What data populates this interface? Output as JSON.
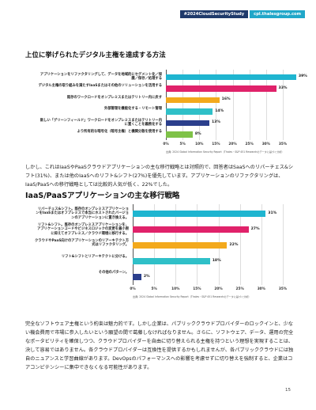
{
  "header": {
    "tag_study": "#2024CloudSecurityStudy",
    "tag_site": "cpl.thalesgroup.com"
  },
  "section1": {
    "title": "上位に挙げられたデジタル主権を達成する方法"
  },
  "chart_data": [
    {
      "type": "bar",
      "orientation": "horizontal",
      "categories": [
        "アプリケーションをリファクタリングして、データを地域的にセグメント化／保護／保存／処理する",
        "デジタル主権の取り組みを満たすIaaSまたはその他のソリューションを活用する",
        "既存のワークロードをオンプレミスまたはテリトリー内に戻す",
        "外部管理を機能化する・リモート管理",
        "新しい「グリーンフィールド」ワークロードをオンプレミスまたはテリトリー内に置くことを義務化する",
        "より所有的な暗号化（暗号主権）と機関分散を使用する"
      ],
      "values": [
        39,
        33,
        16,
        14,
        13,
        8
      ],
      "value_labels": [
        "39%",
        "33%",
        "16%",
        "14%",
        "13%",
        "8%"
      ],
      "colors": [
        "#1fb5d0",
        "#e0226a",
        "#f3a91c",
        "#2fc0c8",
        "#2b3f8c",
        "#7fc248"
      ],
      "xlim": [
        0,
        35
      ],
      "xticks": [
        "0%",
        "5%",
        "10%",
        "15%",
        "20%",
        "25%",
        "30%",
        "35%"
      ],
      "source": "出典: 2024 Global Information Security Report（Thales・S&P 451 Researchのデータに基づく分析）"
    },
    {
      "type": "bar",
      "orientation": "horizontal",
      "categories": [
        "リバーチェス&シフト。既存のオンプレミスアプリケーションをIaaSまたはオフプレミスで本当にホストされたバージョンのアプリケーションに置き換える。",
        "リフト&シフト。既存のオンプレミスアプリケーションを、アプリケーションコードやビジネスロジックの変更を最小限に抑えてオフプレミス／クラウド環境に移行する。",
        "クラウドやPaaS向けのアプリケーションのリアーキテクト方式はリファクタリング。",
        "リフト&シフトとリアーキテクトに分ける。",
        "その他のパターン。"
      ],
      "values": [
        31,
        27,
        22,
        18,
        2
      ],
      "value_labels": [
        "31%",
        "27%",
        "22%",
        "18%",
        "2%"
      ],
      "colors": [
        "#1fb5d0",
        "#e0226a",
        "#f3a91c",
        "#2fc0c8",
        "#2b3f8c"
      ],
      "xlim": [
        0,
        35
      ],
      "xticks": [
        "0%",
        "5%",
        "10%",
        "15%",
        "20%",
        "25%",
        "30%",
        "35%"
      ],
      "source": "出典: 2024 Global Information Security Report（Thales・S&P 451 Researchのデータに基づく分析）"
    }
  ],
  "paragraph1": "しかし、これはIaaSやPaaSクラウドアプリケーションの主な移行戦略とは対照的で、回答者はSaaSへのリパーチェス&シフト(31%)、または他のIaaSへのリフト&シフト(27%)を優先しています。アプリケーションのリファクタリングは、IaaS/PaaSへの移行戦略としては比較的人気が低く、22%でした。",
  "section2": {
    "title": "IaaS/PaaSアプリケーションの主な移行戦略"
  },
  "paragraph2": "完全なソフトウェア主権という約束は魅力的です。しかし企業は、パブリッククラウドプロバイダーのロックインと、少ない機会費用で市場に参入したいという願望の間で葛藤しなければなりません。さらに、ソフトウェア、データ、運用の完全なポータビリティを確保しつつ、クラウドプロバイダーを自由に切り替えられる主権を持つという理想を実現することは、決して容易ではありません。各クラウドプロバイダーは互換性を提供するかもしれませんが、各パブリッククラウドには独自のニュアンスと学習曲線があります。DevOpsのパフォーマンスへの影響を考慮せずに切り替えを強制すると、企業はコアコンピテンシーに集中できなくなる可能性があります。",
  "footer": {
    "page_number": "15"
  }
}
